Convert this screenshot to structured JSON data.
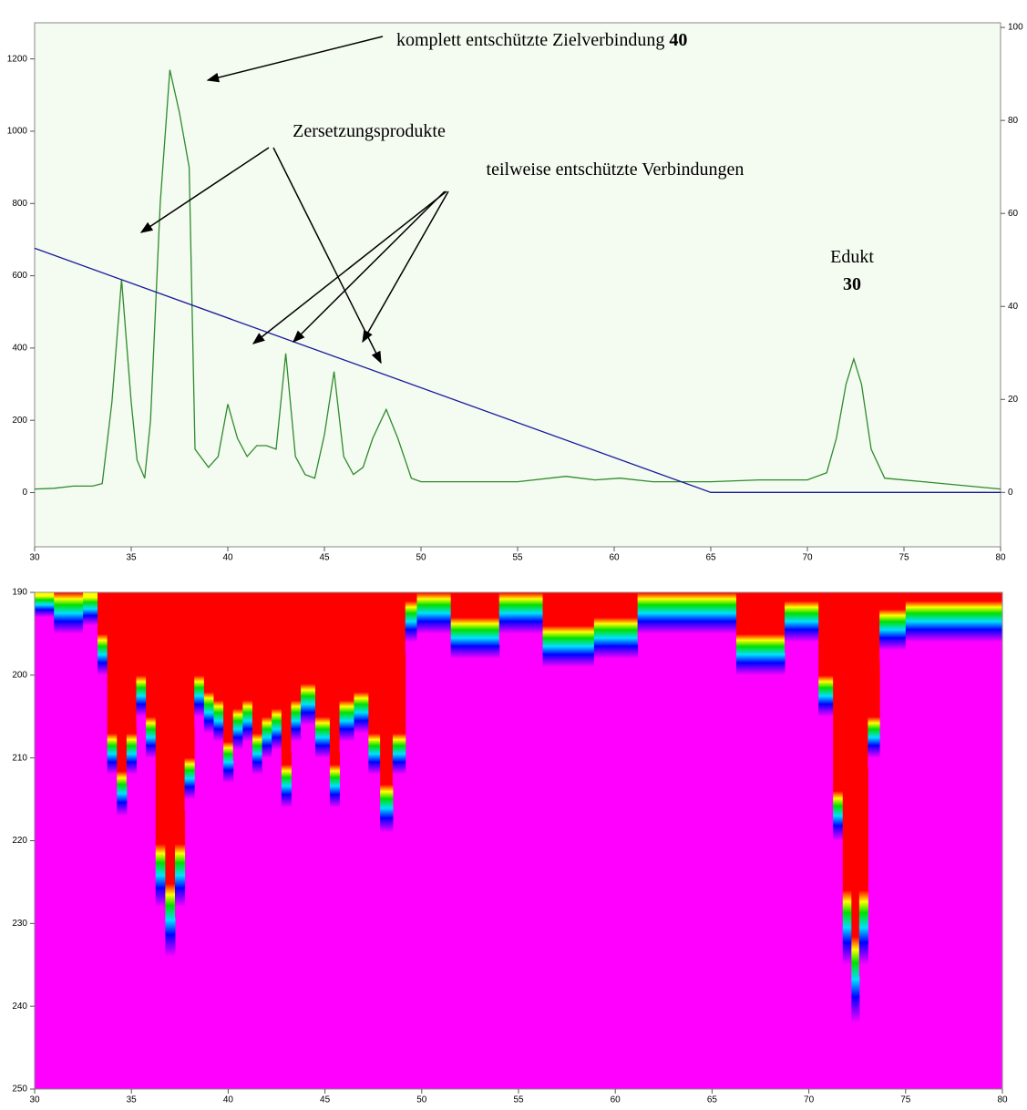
{
  "chart_data": [
    {
      "type": "line",
      "x": [
        30,
        31,
        32,
        33,
        33.5,
        34,
        34.5,
        35,
        35.3,
        35.7,
        36,
        36.5,
        37,
        37.5,
        38,
        38.3,
        39,
        39.5,
        40,
        40.5,
        41,
        41.5,
        42,
        42.5,
        43,
        43.5,
        44,
        44.5,
        45,
        45.5,
        46,
        46.5,
        47,
        47.5,
        48.2,
        48.8,
        49.5,
        50,
        53,
        55,
        57.5,
        59,
        60.3,
        62,
        65,
        67.5,
        70,
        71,
        71.5,
        72,
        72.4,
        72.8,
        73.3,
        74,
        76,
        80
      ],
      "series": [
        {
          "color": "#2e8b2e",
          "values": [
            10,
            12,
            18,
            18,
            25,
            250,
            590,
            250,
            90,
            40,
            200,
            800,
            1170,
            1050,
            900,
            120,
            70,
            100,
            245,
            150,
            100,
            130,
            130,
            120,
            385,
            100,
            50,
            40,
            160,
            335,
            100,
            50,
            70,
            150,
            230,
            150,
            40,
            30,
            30,
            30,
            45,
            35,
            40,
            30,
            30,
            35,
            35,
            55,
            150,
            300,
            370,
            300,
            120,
            40,
            30,
            10
          ]
        },
        {
          "color": "#1a1a9c",
          "axis": "y2",
          "x": [
            30,
            65,
            80
          ],
          "values": [
            52.5,
            0,
            0
          ]
        }
      ],
      "xlim": [
        30,
        80
      ],
      "xticks": [
        30,
        35,
        40,
        45,
        50,
        55,
        60,
        65,
        70,
        75,
        80
      ],
      "ylim": [
        -150,
        1300
      ],
      "yticks": [
        0,
        200,
        400,
        600,
        800,
        1000,
        1200
      ],
      "y2lim": [
        -11.7,
        101
      ],
      "y2ticks": [
        0,
        20,
        40,
        60,
        80,
        100
      ],
      "annotations": [
        {
          "text": "komplett entschützte Zielverbindung",
          "bold": "40"
        },
        {
          "text": "Zersetzungsprodukte"
        },
        {
          "text": "teilweise entschützte Verbindungen"
        },
        {
          "text": "Edukt",
          "bold": "30"
        }
      ]
    },
    {
      "type": "heatmap",
      "x": [
        30,
        32,
        33,
        33.5,
        34,
        34.5,
        35,
        35.5,
        36,
        36.5,
        37,
        37.5,
        38,
        38.5,
        39,
        39.5,
        40,
        40.5,
        41,
        41.5,
        42,
        42.5,
        43,
        43.5,
        44,
        45,
        45.5,
        46,
        47,
        47.5,
        48.2,
        48.8,
        49.5,
        50,
        53,
        55,
        57.5,
        60.3,
        62,
        65,
        67.5,
        70,
        71,
        71.5,
        72,
        72.4,
        72.8,
        73.3,
        74,
        76,
        80
      ],
      "values": [
        193,
        195,
        194,
        200,
        212,
        217,
        212,
        205,
        210,
        228,
        234,
        228,
        215,
        205,
        207,
        208,
        213,
        209,
        208,
        212,
        210,
        209,
        216,
        208,
        206,
        210,
        216,
        208,
        207,
        212,
        219,
        212,
        196,
        195,
        198,
        195,
        199,
        198,
        195,
        195,
        200,
        196,
        205,
        220,
        235,
        242,
        235,
        210,
        197,
        196,
        196
      ],
      "xlim": [
        30,
        80
      ],
      "xticks": [
        30,
        35,
        40,
        45,
        50,
        55,
        60,
        65,
        70,
        75,
        80
      ],
      "ylim": [
        250,
        190
      ],
      "yticks": [
        190,
        200,
        210,
        220,
        230,
        240,
        250
      ]
    }
  ]
}
